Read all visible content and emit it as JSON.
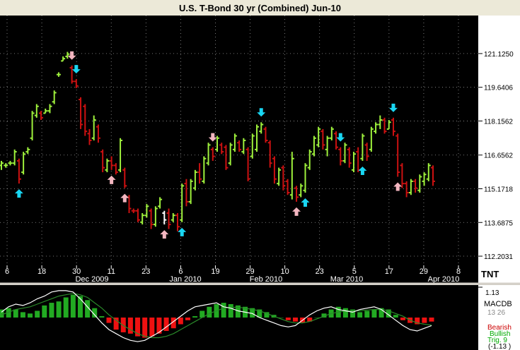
{
  "logo": "TNT",
  "colors": {
    "up": "#9ef03c",
    "down": "#cc1111",
    "neutral": "#ffffff",
    "buy_arrow": "#19d6f2",
    "sell_arrow": "#f3b6c0"
  },
  "macd": {
    "label": "MACDB",
    "top_tick": "1.13",
    "mid_tick": "13 26",
    "bottom_tick": "(-1.13 )",
    "legend": [
      "Bearish",
      "Bullish",
      "Trig. 9"
    ],
    "histogram": [
      0.3,
      0.35,
      0.3,
      0.2,
      0.15,
      0.25,
      0.45,
      0.55,
      0.6,
      0.75,
      0.85,
      0.8,
      0.65,
      0.35,
      0.05,
      -0.2,
      -0.45,
      -0.55,
      -0.6,
      -0.7,
      -0.75,
      -0.7,
      -0.6,
      -0.5,
      -0.4,
      -0.25,
      -0.1,
      0.05,
      0.25,
      0.4,
      0.5,
      0.55,
      0.5,
      0.45,
      0.4,
      0.35,
      0.3,
      0.2,
      0.1,
      0.0,
      -0.1,
      -0.15,
      -0.2,
      -0.15,
      0.0,
      0.15,
      0.3,
      0.4,
      0.35,
      0.3,
      0.2,
      0.25,
      0.3,
      0.35,
      0.3,
      0.1,
      -0.1,
      -0.2,
      -0.25,
      -0.2,
      -0.15
    ],
    "macd_line": [
      0.2,
      0.4,
      0.5,
      0.45,
      0.55,
      0.7,
      0.8,
      0.95,
      1.0,
      1.0,
      0.95,
      0.7,
      0.4,
      0.1,
      -0.2,
      -0.45,
      -0.6,
      -0.75,
      -0.85,
      -0.9,
      -0.85,
      -0.7,
      -0.55,
      -0.35,
      -0.15,
      0.05,
      0.25,
      0.4,
      0.45,
      0.5,
      0.55,
      0.4,
      0.35,
      0.25,
      0.2,
      0.15,
      0.0,
      -0.1,
      -0.2,
      -0.3,
      -0.35,
      -0.3,
      -0.1,
      0.1,
      0.25,
      0.35,
      0.4,
      0.3,
      0.25,
      0.2,
      0.3,
      0.35,
      0.4,
      0.3,
      0.1,
      -0.1,
      -0.3,
      -0.45,
      -0.5,
      -0.4,
      -0.3
    ],
    "trigger_line": [
      0.1,
      0.2,
      0.3,
      0.35,
      0.4,
      0.5,
      0.6,
      0.7,
      0.8,
      0.85,
      0.9,
      0.85,
      0.75,
      0.55,
      0.35,
      0.1,
      -0.1,
      -0.3,
      -0.45,
      -0.6,
      -0.7,
      -0.75,
      -0.75,
      -0.7,
      -0.6,
      -0.45,
      -0.3,
      -0.15,
      0.0,
      0.15,
      0.25,
      0.35,
      0.38,
      0.38,
      0.35,
      0.3,
      0.25,
      0.15,
      0.05,
      -0.05,
      -0.15,
      -0.2,
      -0.2,
      -0.15,
      -0.05,
      0.05,
      0.15,
      0.2,
      0.25,
      0.25,
      0.25,
      0.28,
      0.3,
      0.3,
      0.25,
      0.15,
      0.05,
      -0.1,
      -0.2,
      -0.25,
      -0.28
    ]
  },
  "chart_data": {
    "type": "ohlc",
    "title": "U.S. T-Bond 30 yr (Combined) Jun-10",
    "y_ticks": [
      "121.1250",
      "119.6406",
      "118.1562",
      "116.6562",
      "115.1718",
      "113.6875",
      "112.2031"
    ],
    "ylim": [
      111.8,
      122.8
    ],
    "x_ticks": [
      "6",
      "18",
      "30",
      "11",
      "23",
      "6",
      "19",
      "29",
      "10",
      "23",
      "5",
      "17",
      "29",
      "8"
    ],
    "x_months": [
      "Dec 2009",
      "Jan 2010",
      "Feb 2010",
      "Mar 2010",
      "Apr 2010"
    ],
    "grid": true,
    "bars": [
      {
        "h": 116.4,
        "l": 116.0,
        "o": 116.2,
        "c": 116.3,
        "dir": "up"
      },
      {
        "h": 116.3,
        "l": 116.1,
        "o": 116.2,
        "c": 116.2,
        "dir": "up"
      },
      {
        "h": 116.4,
        "l": 116.2,
        "o": 116.3,
        "c": 116.3,
        "dir": "up"
      },
      {
        "h": 116.9,
        "l": 116.2,
        "o": 116.3,
        "c": 116.8,
        "dir": "up"
      },
      {
        "h": 116.5,
        "l": 115.4,
        "o": 116.4,
        "c": 115.6,
        "dir": "down"
      },
      {
        "h": 116.8,
        "l": 115.8,
        "o": 115.9,
        "c": 116.7,
        "dir": "up"
      },
      {
        "h": 117.0,
        "l": 116.7,
        "o": 116.8,
        "c": 116.9,
        "dir": "up"
      },
      {
        "h": 118.6,
        "l": 117.3,
        "o": 117.4,
        "c": 118.5,
        "dir": "up"
      },
      {
        "h": 118.9,
        "l": 118.3,
        "o": 118.4,
        "c": 118.8,
        "dir": "up"
      },
      {
        "h": 118.6,
        "l": 118.2,
        "o": 118.5,
        "c": 118.3,
        "dir": "down"
      },
      {
        "h": 118.7,
        "l": 118.5,
        "o": 118.5,
        "c": 118.6,
        "dir": "up"
      },
      {
        "h": 118.9,
        "l": 118.5,
        "o": 118.6,
        "c": 118.8,
        "dir": "up"
      },
      {
        "h": 119.5,
        "l": 118.9,
        "o": 119.0,
        "c": 119.4,
        "dir": "up"
      },
      {
        "h": 120.3,
        "l": 120.1,
        "o": 120.2,
        "c": 120.2,
        "dir": "up"
      },
      {
        "h": 121.0,
        "l": 120.8,
        "o": 120.8,
        "c": 120.9,
        "dir": "up"
      },
      {
        "h": 121.2,
        "l": 120.9,
        "o": 121.0,
        "c": 121.1,
        "dir": "up"
      },
      {
        "h": 120.6,
        "l": 119.8,
        "o": 120.5,
        "c": 119.9,
        "dir": "down"
      },
      {
        "h": 120.0,
        "l": 119.6,
        "o": 119.9,
        "c": 119.7,
        "dir": "down"
      },
      {
        "h": 119.2,
        "l": 117.8,
        "o": 119.1,
        "c": 118.0,
        "dir": "down"
      },
      {
        "h": 118.9,
        "l": 117.5,
        "o": 118.8,
        "c": 117.7,
        "dir": "down"
      },
      {
        "h": 117.8,
        "l": 117.1,
        "o": 117.6,
        "c": 117.3,
        "dir": "down"
      },
      {
        "h": 118.4,
        "l": 117.3,
        "o": 117.4,
        "c": 118.2,
        "dir": "up"
      },
      {
        "h": 118.0,
        "l": 117.2,
        "o": 117.9,
        "c": 117.4,
        "dir": "down"
      },
      {
        "h": 116.9,
        "l": 115.9,
        "o": 116.8,
        "c": 116.1,
        "dir": "down"
      },
      {
        "h": 116.5,
        "l": 115.9,
        "o": 116.0,
        "c": 116.4,
        "dir": "up"
      },
      {
        "h": 116.6,
        "l": 116.0,
        "o": 116.4,
        "c": 116.2,
        "dir": "down"
      },
      {
        "h": 116.3,
        "l": 115.8,
        "o": 116.2,
        "c": 115.9,
        "dir": "down"
      },
      {
        "h": 117.4,
        "l": 115.9,
        "o": 116.0,
        "c": 117.3,
        "dir": "up"
      },
      {
        "h": 116.1,
        "l": 115.2,
        "o": 116.0,
        "c": 115.3,
        "dir": "down"
      },
      {
        "h": 114.9,
        "l": 114.1,
        "o": 114.8,
        "c": 114.3,
        "dir": "down"
      },
      {
        "h": 114.3,
        "l": 114.1,
        "o": 114.2,
        "c": 114.2,
        "dir": "down"
      },
      {
        "h": 114.3,
        "l": 113.7,
        "o": 114.2,
        "c": 113.8,
        "dir": "down"
      },
      {
        "h": 114.1,
        "l": 113.6,
        "o": 113.7,
        "c": 114.0,
        "dir": "up"
      },
      {
        "h": 114.5,
        "l": 113.9,
        "o": 114.0,
        "c": 114.4,
        "dir": "up"
      },
      {
        "h": 114.3,
        "l": 113.4,
        "o": 114.2,
        "c": 113.6,
        "dir": "down"
      },
      {
        "h": 114.4,
        "l": 113.5,
        "o": 113.6,
        "c": 114.3,
        "dir": "up"
      },
      {
        "h": 114.8,
        "l": 114.3,
        "o": 114.4,
        "c": 114.7,
        "dir": "up"
      },
      {
        "h": 114.2,
        "l": 113.6,
        "o": 114.1,
        "c": 113.8,
        "dir": "neutral"
      },
      {
        "h": 114.3,
        "l": 113.4,
        "o": 114.1,
        "c": 113.6,
        "dir": "down"
      },
      {
        "h": 114.1,
        "l": 113.7,
        "o": 113.8,
        "c": 114.0,
        "dir": "up"
      },
      {
        "h": 114.1,
        "l": 113.3,
        "o": 114.0,
        "c": 113.5,
        "dir": "down"
      },
      {
        "h": 115.4,
        "l": 113.7,
        "o": 113.8,
        "c": 115.3,
        "dir": "up"
      },
      {
        "h": 115.6,
        "l": 114.4,
        "o": 115.4,
        "c": 114.6,
        "dir": "down"
      },
      {
        "h": 115.6,
        "l": 114.5,
        "o": 114.6,
        "c": 115.5,
        "dir": "up"
      },
      {
        "h": 116.0,
        "l": 115.1,
        "o": 115.2,
        "c": 115.9,
        "dir": "up"
      },
      {
        "h": 116.3,
        "l": 115.4,
        "o": 115.9,
        "c": 115.6,
        "dir": "down"
      },
      {
        "h": 116.6,
        "l": 115.4,
        "o": 115.5,
        "c": 116.5,
        "dir": "up"
      },
      {
        "h": 117.2,
        "l": 116.2,
        "o": 116.3,
        "c": 117.1,
        "dir": "up"
      },
      {
        "h": 117.0,
        "l": 116.4,
        "o": 116.9,
        "c": 116.6,
        "dir": "down"
      },
      {
        "h": 117.5,
        "l": 116.8,
        "o": 116.9,
        "c": 117.4,
        "dir": "up"
      },
      {
        "h": 117.2,
        "l": 116.7,
        "o": 117.1,
        "c": 116.8,
        "dir": "down"
      },
      {
        "h": 117.1,
        "l": 116.0,
        "o": 117.0,
        "c": 116.1,
        "dir": "down"
      },
      {
        "h": 117.2,
        "l": 116.2,
        "o": 116.3,
        "c": 117.1,
        "dir": "up"
      },
      {
        "h": 117.6,
        "l": 116.8,
        "o": 116.9,
        "c": 117.5,
        "dir": "up"
      },
      {
        "h": 117.3,
        "l": 116.8,
        "o": 117.2,
        "c": 116.9,
        "dir": "down"
      },
      {
        "h": 117.4,
        "l": 116.7,
        "o": 116.8,
        "c": 117.3,
        "dir": "up"
      },
      {
        "h": 117.0,
        "l": 115.5,
        "o": 116.9,
        "c": 115.6,
        "dir": "down"
      },
      {
        "h": 117.6,
        "l": 116.5,
        "o": 116.6,
        "c": 117.5,
        "dir": "up"
      },
      {
        "h": 118.0,
        "l": 116.8,
        "o": 116.9,
        "c": 117.9,
        "dir": "up"
      },
      {
        "h": 118.1,
        "l": 117.6,
        "o": 117.7,
        "c": 118.0,
        "dir": "up"
      },
      {
        "h": 117.9,
        "l": 117.2,
        "o": 117.8,
        "c": 117.3,
        "dir": "down"
      },
      {
        "h": 117.3,
        "l": 116.1,
        "o": 117.2,
        "c": 116.3,
        "dir": "down"
      },
      {
        "h": 116.6,
        "l": 115.4,
        "o": 116.5,
        "c": 115.6,
        "dir": "down"
      },
      {
        "h": 116.1,
        "l": 115.3,
        "o": 115.4,
        "c": 116.0,
        "dir": "up"
      },
      {
        "h": 116.2,
        "l": 115.1,
        "o": 116.1,
        "c": 115.3,
        "dir": "down"
      },
      {
        "h": 115.6,
        "l": 114.9,
        "o": 115.5,
        "c": 115.0,
        "dir": "down"
      },
      {
        "h": 116.8,
        "l": 114.7,
        "o": 114.9,
        "c": 116.5,
        "dir": "up"
      },
      {
        "h": 115.3,
        "l": 114.6,
        "o": 115.2,
        "c": 114.8,
        "dir": "down"
      },
      {
        "h": 115.4,
        "l": 114.8,
        "o": 114.9,
        "c": 115.3,
        "dir": "up"
      },
      {
        "h": 116.3,
        "l": 115.0,
        "o": 115.1,
        "c": 116.2,
        "dir": "up"
      },
      {
        "h": 116.9,
        "l": 116.0,
        "o": 116.1,
        "c": 116.8,
        "dir": "up"
      },
      {
        "h": 117.5,
        "l": 116.6,
        "o": 116.7,
        "c": 117.4,
        "dir": "up"
      },
      {
        "h": 117.9,
        "l": 117.0,
        "o": 117.1,
        "c": 117.8,
        "dir": "up"
      },
      {
        "h": 117.8,
        "l": 116.9,
        "o": 117.7,
        "c": 117.1,
        "dir": "down"
      },
      {
        "h": 117.5,
        "l": 116.6,
        "o": 116.9,
        "c": 117.4,
        "dir": "up"
      },
      {
        "h": 117.9,
        "l": 117.3,
        "o": 117.4,
        "c": 117.8,
        "dir": "up"
      },
      {
        "h": 117.7,
        "l": 116.9,
        "o": 117.6,
        "c": 117.0,
        "dir": "down"
      },
      {
        "h": 117.0,
        "l": 116.2,
        "o": 116.9,
        "c": 116.4,
        "dir": "down"
      },
      {
        "h": 117.2,
        "l": 116.3,
        "o": 116.4,
        "c": 117.1,
        "dir": "up"
      },
      {
        "h": 117.0,
        "l": 116.1,
        "o": 116.9,
        "c": 116.3,
        "dir": "down"
      },
      {
        "h": 116.8,
        "l": 115.9,
        "o": 116.0,
        "c": 116.7,
        "dir": "up"
      },
      {
        "h": 117.0,
        "l": 115.9,
        "o": 116.8,
        "c": 116.0,
        "dir": "down"
      },
      {
        "h": 117.6,
        "l": 116.4,
        "o": 116.5,
        "c": 117.5,
        "dir": "up"
      },
      {
        "h": 117.2,
        "l": 116.4,
        "o": 117.1,
        "c": 116.6,
        "dir": "down"
      },
      {
        "h": 117.9,
        "l": 116.8,
        "o": 116.9,
        "c": 117.8,
        "dir": "up"
      },
      {
        "h": 118.1,
        "l": 117.6,
        "o": 117.7,
        "c": 118.0,
        "dir": "up"
      },
      {
        "h": 118.4,
        "l": 117.8,
        "o": 118.0,
        "c": 118.2,
        "dir": "up"
      },
      {
        "h": 118.3,
        "l": 117.6,
        "o": 118.2,
        "c": 117.7,
        "dir": "down"
      },
      {
        "h": 118.2,
        "l": 117.8,
        "o": 117.8,
        "c": 118.1,
        "dir": "up"
      },
      {
        "h": 118.3,
        "l": 117.5,
        "o": 118.2,
        "c": 117.7,
        "dir": "down"
      },
      {
        "h": 117.6,
        "l": 115.7,
        "o": 117.5,
        "c": 115.9,
        "dir": "down"
      },
      {
        "h": 116.3,
        "l": 115.2,
        "o": 116.2,
        "c": 115.4,
        "dir": "down"
      },
      {
        "h": 115.5,
        "l": 114.8,
        "o": 115.4,
        "c": 115.0,
        "dir": "down"
      },
      {
        "h": 115.6,
        "l": 114.9,
        "o": 115.0,
        "c": 115.5,
        "dir": "up"
      },
      {
        "h": 115.6,
        "l": 115.0,
        "o": 115.5,
        "c": 115.2,
        "dir": "down"
      },
      {
        "h": 115.8,
        "l": 115.0,
        "o": 115.1,
        "c": 115.7,
        "dir": "up"
      },
      {
        "h": 115.9,
        "l": 115.3,
        "o": 115.5,
        "c": 115.8,
        "dir": "up"
      },
      {
        "h": 116.3,
        "l": 115.5,
        "o": 115.6,
        "c": 116.2,
        "dir": "up"
      },
      {
        "h": 116.2,
        "l": 115.3,
        "o": 116.1,
        "c": 115.5,
        "dir": "down"
      }
    ],
    "signals": [
      {
        "bar": 4,
        "type": "buy",
        "pos": "below"
      },
      {
        "bar": 16,
        "type": "sell",
        "pos": "above"
      },
      {
        "bar": 17,
        "type": "buy",
        "pos": "above"
      },
      {
        "bar": 25,
        "type": "sell",
        "pos": "below"
      },
      {
        "bar": 28,
        "type": "sell",
        "pos": "below"
      },
      {
        "bar": 37,
        "type": "sell",
        "pos": "below"
      },
      {
        "bar": 41,
        "type": "buy",
        "pos": "below"
      },
      {
        "bar": 48,
        "type": "sell",
        "pos": "above"
      },
      {
        "bar": 59,
        "type": "buy",
        "pos": "above"
      },
      {
        "bar": 67,
        "type": "sell",
        "pos": "below"
      },
      {
        "bar": 69,
        "type": "buy",
        "pos": "below"
      },
      {
        "bar": 77,
        "type": "buy",
        "pos": "above"
      },
      {
        "bar": 82,
        "type": "buy",
        "pos": "below"
      },
      {
        "bar": 89,
        "type": "buy",
        "pos": "above"
      },
      {
        "bar": 90,
        "type": "sell",
        "pos": "below"
      }
    ]
  }
}
